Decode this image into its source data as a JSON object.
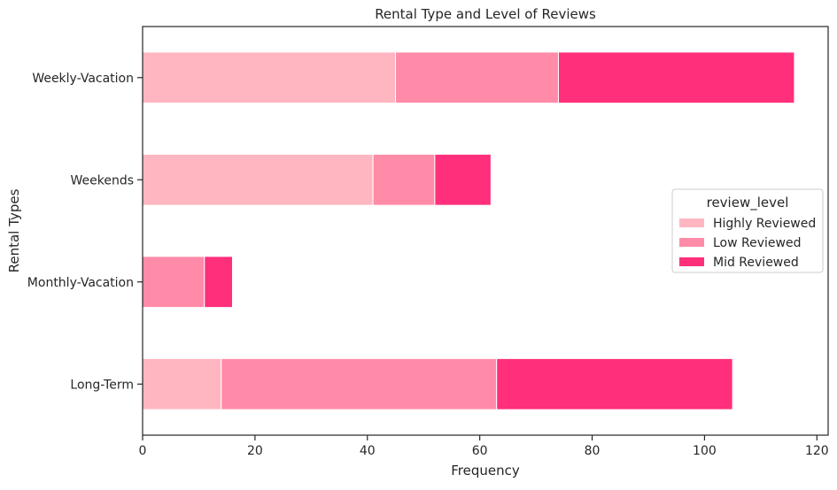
{
  "chart_data": {
    "type": "bar",
    "orientation": "horizontal",
    "stacked": true,
    "title": "Rental Type and Level of Reviews",
    "xlabel": "Frequency",
    "ylabel": "Rental Types",
    "categories": [
      "Long-Term",
      "Monthly-Vacation",
      "Weekends",
      "Weekly-Vacation"
    ],
    "series": [
      {
        "name": "Highly Reviewed",
        "color": "#ffb6c1",
        "values": [
          14,
          0,
          41,
          45
        ]
      },
      {
        "name": "Low Reviewed",
        "color": "#ff8ba9",
        "values": [
          49,
          11,
          11,
          29
        ]
      },
      {
        "name": "Mid Reviewed",
        "color": "#ff2f7c",
        "values": [
          42,
          5,
          10,
          42
        ]
      }
    ],
    "xlim": [
      0,
      122
    ],
    "xticks": [
      0,
      20,
      40,
      60,
      80,
      100,
      120
    ],
    "grid": false,
    "legend": {
      "title": "review_level",
      "placement": "center-right"
    }
  }
}
